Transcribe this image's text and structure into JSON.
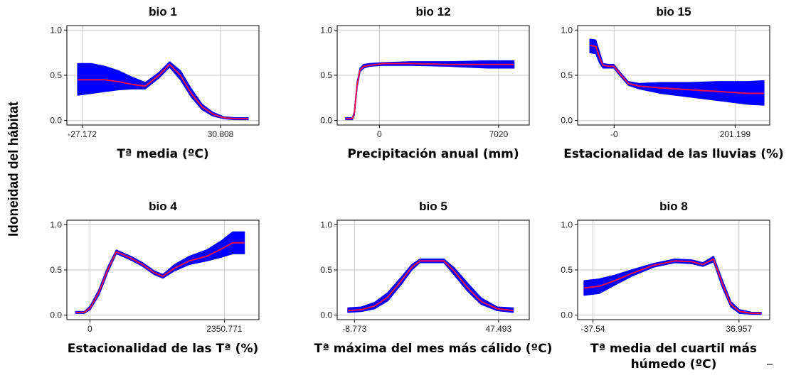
{
  "y_axis_label": "Idoneidad del hábitat",
  "colors": {
    "band": "#0000ff",
    "mean": "#e8104a",
    "frame": "#000000",
    "grid": "#c8c8c8"
  },
  "chart_data": [
    {
      "type": "area",
      "title": "bio 1",
      "xlabel": "Tª media (ºC)",
      "x_ticks": [
        "-27.172",
        "30.808"
      ],
      "y_ticks": [
        "0.0",
        "0.5",
        "1.0"
      ],
      "xlim": [
        -34,
        37
      ],
      "ylim": [
        -0.05,
        1.05
      ],
      "grid": true,
      "series": [
        {
          "x": [
            -30,
            -25,
            -20,
            -15,
            -10,
            -5,
            0,
            4,
            8,
            12,
            16,
            20,
            24,
            28,
            33
          ],
          "mean": [
            0.45,
            0.45,
            0.45,
            0.43,
            0.4,
            0.38,
            0.5,
            0.62,
            0.5,
            0.3,
            0.15,
            0.07,
            0.03,
            0.02,
            0.02
          ],
          "lower": [
            0.28,
            0.3,
            0.32,
            0.34,
            0.35,
            0.35,
            0.47,
            0.59,
            0.45,
            0.26,
            0.12,
            0.05,
            0.02,
            0.01,
            0.01
          ],
          "upper": [
            0.63,
            0.63,
            0.6,
            0.55,
            0.48,
            0.42,
            0.53,
            0.65,
            0.55,
            0.35,
            0.18,
            0.09,
            0.04,
            0.03,
            0.03
          ]
        }
      ]
    },
    {
      "type": "area",
      "title": "bio 12",
      "xlabel": "Precipitación anual (mm)",
      "x_ticks": [
        "0",
        "7020"
      ],
      "y_ticks": [
        "0.0",
        "0.5",
        "1.0"
      ],
      "xlim": [
        -900,
        9200
      ],
      "ylim": [
        -0.05,
        1.05
      ],
      "grid": true,
      "series": [
        {
          "x": [
            -450,
            -100,
            0,
            150,
            300,
            500,
            800,
            1500,
            3000,
            5000,
            7000,
            8400
          ],
          "mean": [
            0.02,
            0.02,
            0.08,
            0.4,
            0.56,
            0.6,
            0.61,
            0.63,
            0.63,
            0.62,
            0.62,
            0.62
          ],
          "lower": [
            0.01,
            0.01,
            0.06,
            0.37,
            0.54,
            0.58,
            0.6,
            0.61,
            0.61,
            0.6,
            0.58,
            0.58
          ],
          "upper": [
            0.03,
            0.03,
            0.1,
            0.43,
            0.58,
            0.62,
            0.63,
            0.64,
            0.65,
            0.65,
            0.66,
            0.66
          ]
        }
      ]
    },
    {
      "type": "area",
      "title": "bio 15",
      "xlabel": "Estacionalidad de las lluvias (%)",
      "x_ticks": [
        "-0",
        "201.199"
      ],
      "y_ticks": [
        "0.0",
        "0.5",
        "1.0"
      ],
      "xlim": [
        -25,
        240
      ],
      "ylim": [
        -0.05,
        1.05
      ],
      "grid": true,
      "series": [
        {
          "x": [
            -8,
            0,
            5,
            10,
            18,
            25,
            35,
            45,
            60,
            90,
            130,
            170,
            210,
            232
          ],
          "mean": [
            0.83,
            0.82,
            0.7,
            0.61,
            0.6,
            0.6,
            0.5,
            0.41,
            0.38,
            0.36,
            0.34,
            0.32,
            0.3,
            0.3
          ],
          "lower": [
            0.75,
            0.74,
            0.64,
            0.58,
            0.58,
            0.58,
            0.48,
            0.39,
            0.35,
            0.3,
            0.26,
            0.22,
            0.18,
            0.17
          ],
          "upper": [
            0.9,
            0.89,
            0.76,
            0.63,
            0.62,
            0.62,
            0.52,
            0.43,
            0.41,
            0.42,
            0.42,
            0.43,
            0.43,
            0.44
          ]
        }
      ]
    },
    {
      "type": "area",
      "title": "bio 4",
      "xlabel": "Estacionalidad de las Tª (%)",
      "x_ticks": [
        "0",
        "2350.771"
      ],
      "y_ticks": [
        "0.0",
        "0.5",
        "1.0"
      ],
      "xlim": [
        -300,
        3000
      ],
      "ylim": [
        -0.05,
        1.05
      ],
      "grid": true,
      "series": [
        {
          "x": [
            -150,
            0,
            100,
            250,
            400,
            550,
            800,
            1000,
            1200,
            1350,
            1550,
            1800,
            2100,
            2350,
            2550,
            2750
          ],
          "mean": [
            0.03,
            0.03,
            0.08,
            0.25,
            0.5,
            0.7,
            0.63,
            0.56,
            0.47,
            0.43,
            0.52,
            0.6,
            0.65,
            0.73,
            0.8,
            0.8
          ],
          "lower": [
            0.02,
            0.02,
            0.06,
            0.22,
            0.47,
            0.68,
            0.61,
            0.54,
            0.45,
            0.41,
            0.49,
            0.56,
            0.6,
            0.64,
            0.68,
            0.68
          ],
          "upper": [
            0.04,
            0.04,
            0.1,
            0.28,
            0.53,
            0.72,
            0.65,
            0.58,
            0.49,
            0.45,
            0.56,
            0.65,
            0.72,
            0.82,
            0.92,
            0.92
          ]
        }
      ]
    },
    {
      "type": "area",
      "title": "bio 5",
      "xlabel": "Tª máxima del mes más cálido (ºC)",
      "x_ticks": [
        "-8.773",
        "47.493"
      ],
      "y_ticks": [
        "0.0",
        "0.5",
        "1.0"
      ],
      "xlim": [
        -16,
        56
      ],
      "ylim": [
        -0.05,
        1.05
      ],
      "grid": true,
      "series": [
        {
          "x": [
            -12,
            -7,
            -2,
            3,
            8,
            12,
            15,
            18,
            24,
            28,
            33,
            38,
            44,
            50
          ],
          "mean": [
            0.05,
            0.06,
            0.1,
            0.2,
            0.38,
            0.53,
            0.6,
            0.6,
            0.6,
            0.48,
            0.3,
            0.15,
            0.07,
            0.05
          ],
          "lower": [
            0.03,
            0.04,
            0.07,
            0.16,
            0.34,
            0.5,
            0.58,
            0.58,
            0.58,
            0.44,
            0.26,
            0.12,
            0.05,
            0.03
          ],
          "upper": [
            0.08,
            0.09,
            0.14,
            0.25,
            0.42,
            0.56,
            0.62,
            0.62,
            0.62,
            0.52,
            0.35,
            0.19,
            0.09,
            0.08
          ]
        }
      ]
    },
    {
      "type": "area",
      "title": "bio 8",
      "xlabel": "Tª media del cuartil más",
      "xlabel_line2": "húmedo (ºC)",
      "x_ticks": [
        "-37.54",
        "36.957"
      ],
      "y_ticks": [
        "0.0",
        "0.5",
        "1.0"
      ],
      "xlim": [
        -45,
        44
      ],
      "ylim": [
        -0.05,
        1.05
      ],
      "grid": true,
      "series": [
        {
          "x": [
            -42,
            -35,
            -28,
            -20,
            -10,
            0,
            8,
            13,
            18,
            22,
            26,
            30,
            36,
            40
          ],
          "mean": [
            0.3,
            0.32,
            0.38,
            0.46,
            0.55,
            0.6,
            0.59,
            0.56,
            0.62,
            0.35,
            0.12,
            0.04,
            0.02,
            0.02
          ],
          "lower": [
            0.22,
            0.24,
            0.33,
            0.43,
            0.53,
            0.58,
            0.57,
            0.54,
            0.59,
            0.31,
            0.09,
            0.02,
            0.01,
            0.01
          ],
          "upper": [
            0.38,
            0.4,
            0.44,
            0.5,
            0.57,
            0.62,
            0.61,
            0.58,
            0.65,
            0.39,
            0.15,
            0.06,
            0.03,
            0.03
          ]
        }
      ]
    }
  ]
}
